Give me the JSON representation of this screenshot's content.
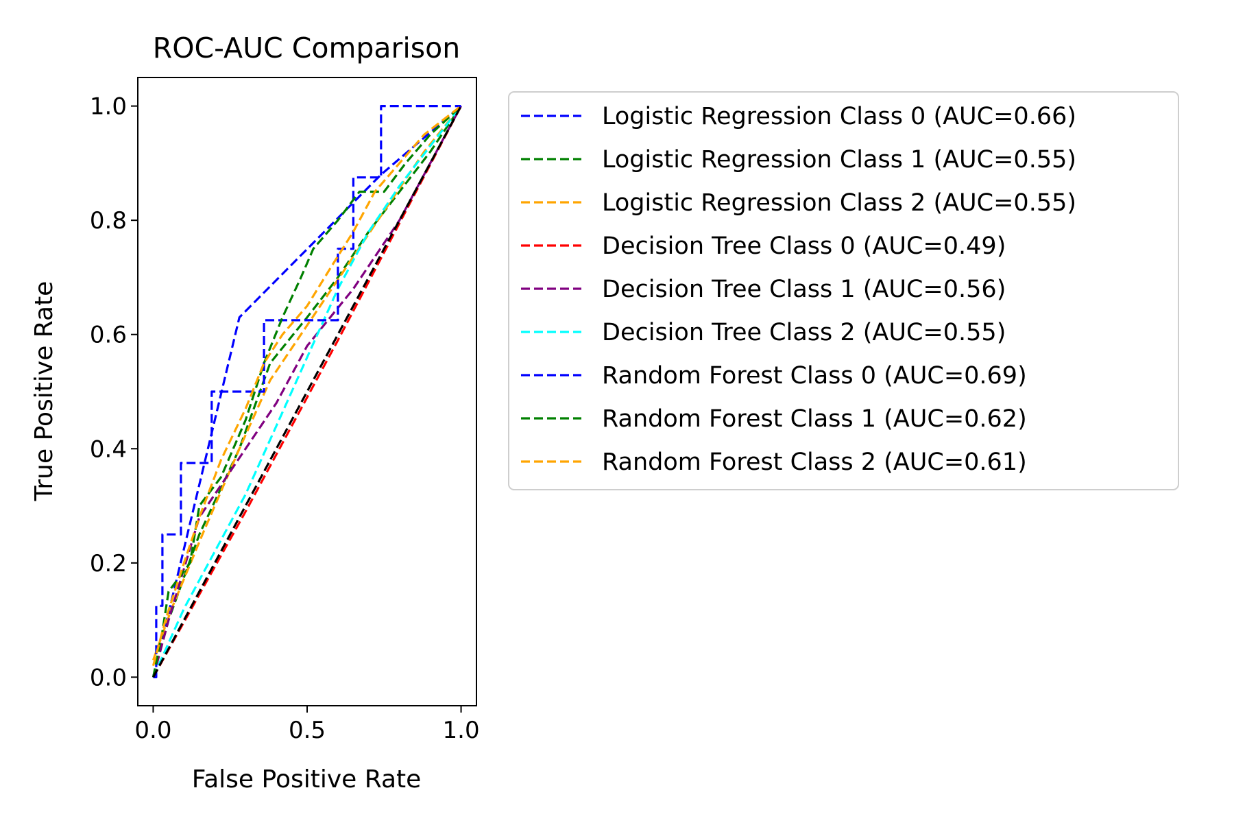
{
  "chart_data": {
    "type": "line",
    "title": "ROC-AUC Comparison",
    "xlabel": "False Positive Rate",
    "ylabel": "True Positive Rate",
    "xlim": [
      -0.05,
      1.05
    ],
    "ylim": [
      -0.05,
      1.05
    ],
    "xticks": [
      0.0,
      0.5,
      1.0
    ],
    "xtick_labels": [
      "0.0",
      "0.5",
      "1.0"
    ],
    "yticks": [
      0.0,
      0.2,
      0.4,
      0.6,
      0.8,
      1.0
    ],
    "ytick_labels": [
      "0.0",
      "0.2",
      "0.4",
      "0.6",
      "0.8",
      "1.0"
    ],
    "grid": false,
    "legend_position": "outside-right",
    "series": [
      {
        "name": "Logistic Regression Class 0 (AUC=0.66)",
        "color": "#0000ff",
        "x": [
          0,
          0.28,
          0.74,
          1.0
        ],
        "y": [
          0,
          0.63,
          0.88,
          1.0
        ]
      },
      {
        "name": "Logistic Regression Class 1 (AUC=0.55)",
        "color": "#008000",
        "x": [
          0,
          0.05,
          0.15,
          0.28,
          0.38,
          0.5,
          0.6,
          0.7,
          0.8,
          0.9,
          1.0
        ],
        "y": [
          0,
          0.1,
          0.25,
          0.4,
          0.55,
          0.63,
          0.7,
          0.78,
          0.85,
          0.92,
          1.0
        ]
      },
      {
        "name": "Logistic Regression Class 2 (AUC=0.55)",
        "color": "#ffa500",
        "x": [
          0,
          0.06,
          0.16,
          0.28,
          0.38,
          0.48,
          0.58,
          0.68,
          0.78,
          0.88,
          1.0
        ],
        "y": [
          0.03,
          0.12,
          0.25,
          0.4,
          0.52,
          0.6,
          0.68,
          0.76,
          0.84,
          0.92,
          1.0
        ]
      },
      {
        "name": "Decision Tree Class 0 (AUC=0.49)",
        "color": "#ff0000",
        "x": [
          0,
          0.3,
          0.6,
          1.0
        ],
        "y": [
          0,
          0.29,
          0.59,
          1.0
        ]
      },
      {
        "name": "Decision Tree Class 1 (AUC=0.56)",
        "color": "#800080",
        "x": [
          0,
          0.05,
          0.15,
          0.3,
          0.4,
          0.5,
          0.65,
          0.8,
          1.0
        ],
        "y": [
          0,
          0.1,
          0.28,
          0.4,
          0.48,
          0.58,
          0.68,
          0.8,
          1.0
        ]
      },
      {
        "name": "Decision Tree Class 2 (AUC=0.55)",
        "color": "#00ffff",
        "x": [
          0,
          0.1,
          0.2,
          0.3,
          0.4,
          0.5,
          0.6,
          0.7,
          0.8,
          0.9,
          1.0
        ],
        "y": [
          0,
          0.12,
          0.22,
          0.32,
          0.44,
          0.56,
          0.68,
          0.78,
          0.86,
          0.93,
          1.0
        ]
      },
      {
        "name": "Random Forest Class 0 (AUC=0.69)",
        "color": "#0000ff",
        "x": [
          0,
          0.01,
          0.01,
          0.03,
          0.03,
          0.04,
          0.04,
          0.07,
          0.07,
          0.09,
          0.09,
          0.14,
          0.14,
          0.19,
          0.19,
          0.36,
          0.36,
          0.6,
          0.6,
          0.65,
          0.65,
          0.74,
          0.74,
          1.0,
          1.0
        ],
        "y": [
          0,
          0,
          0.125,
          0.125,
          0.25,
          0.25,
          0.25,
          0.25,
          0.25,
          0.25,
          0.375,
          0.375,
          0.375,
          0.375,
          0.5,
          0.5,
          0.625,
          0.625,
          0.75,
          0.75,
          0.875,
          0.875,
          1.0,
          1.0,
          1.0
        ]
      },
      {
        "name": "Random Forest Class 1 (AUC=0.62)",
        "color": "#008000",
        "x": [
          0,
          0.03,
          0.05,
          0.12,
          0.15,
          0.22,
          0.3,
          0.36,
          0.42,
          0.48,
          0.52,
          0.6,
          0.67,
          0.75,
          0.82,
          0.9,
          1.0
        ],
        "y": [
          0,
          0.08,
          0.15,
          0.2,
          0.3,
          0.35,
          0.45,
          0.55,
          0.63,
          0.7,
          0.75,
          0.8,
          0.85,
          0.85,
          0.9,
          0.95,
          1.0
        ]
      },
      {
        "name": "Random Forest Class 2 (AUC=0.61)",
        "color": "#ffa500",
        "x": [
          0,
          0.04,
          0.1,
          0.15,
          0.22,
          0.3,
          0.36,
          0.42,
          0.5,
          0.58,
          0.65,
          0.72,
          0.8,
          0.88,
          1.0
        ],
        "y": [
          0.02,
          0.1,
          0.2,
          0.28,
          0.38,
          0.47,
          0.55,
          0.6,
          0.65,
          0.72,
          0.78,
          0.85,
          0.9,
          0.95,
          1.0
        ]
      },
      {
        "color": "#000000",
        "x": [
          0,
          1
        ],
        "y": [
          0,
          1
        ]
      }
    ]
  }
}
